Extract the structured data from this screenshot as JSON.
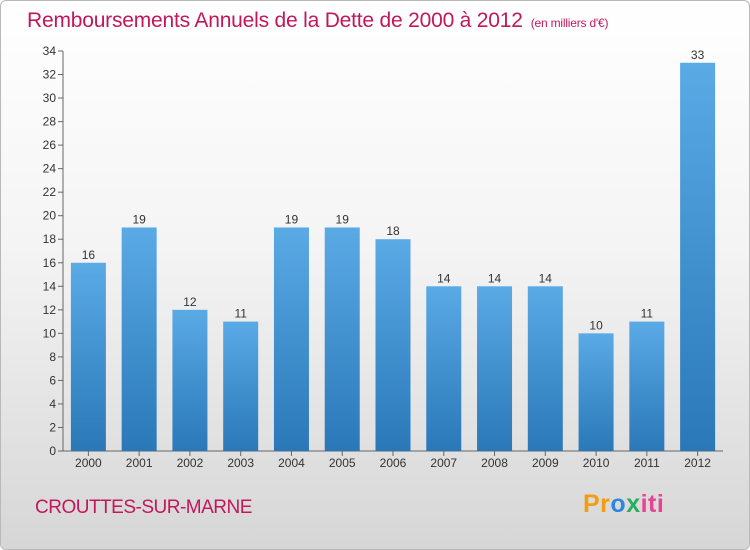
{
  "header": {
    "title": "Remboursements Annuels de la Dette de 2000 à 2012",
    "unit": "(en milliers d'€)"
  },
  "footer": {
    "commune": "CROUTTES-SUR-MARNE",
    "brand_parts": [
      "Pr",
      "o",
      "x",
      "iti"
    ]
  },
  "colors": {
    "title": "#c2185b",
    "bar_top": "#5aaae6",
    "bar_bottom": "#2a78b8",
    "brand": [
      "#f39c12",
      "#2e86de",
      "#27ae60",
      "#e84393"
    ]
  },
  "chart_data": {
    "type": "bar",
    "title": "Remboursements Annuels de la Dette de 2000 à 2012",
    "subtitle": "(en milliers d'€)",
    "categories": [
      "2000",
      "2001",
      "2002",
      "2003",
      "2004",
      "2005",
      "2006",
      "2007",
      "2008",
      "2009",
      "2010",
      "2011",
      "2012"
    ],
    "values": [
      16,
      19,
      12,
      11,
      19,
      19,
      18,
      14,
      14,
      14,
      10,
      11,
      33
    ],
    "data_labels": [
      "16",
      "19",
      "12",
      "11",
      "19",
      "19",
      "18",
      "14",
      "14",
      "14",
      "10",
      "11",
      "33"
    ],
    "yticks": [
      0,
      2,
      4,
      6,
      8,
      10,
      12,
      14,
      16,
      18,
      20,
      22,
      24,
      26,
      28,
      30,
      32,
      34
    ],
    "ylim": [
      0,
      34
    ],
    "xlabel": "",
    "ylabel": "",
    "grid": false
  }
}
